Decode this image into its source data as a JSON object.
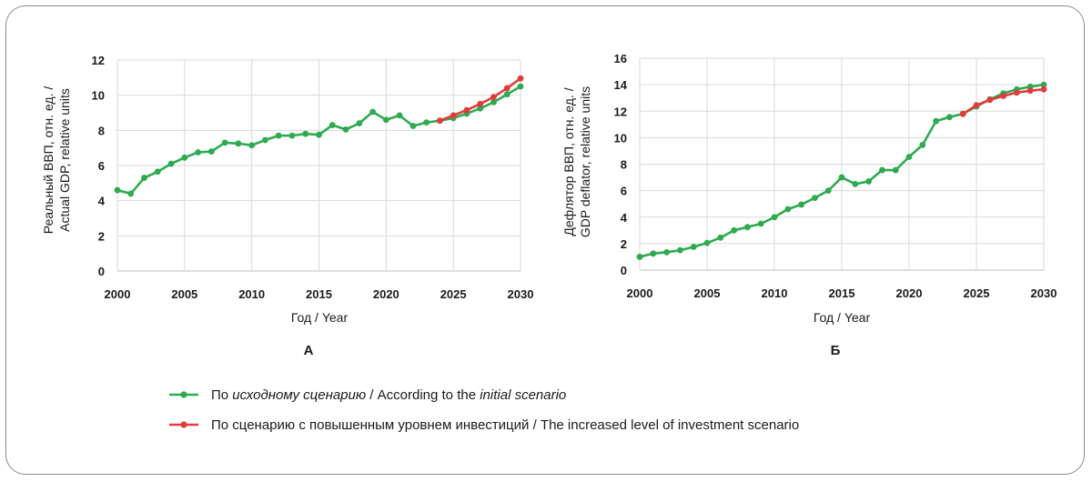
{
  "colors": {
    "initial": "#2eaa4f",
    "invest": "#e03c3c",
    "grid": "#d9d9d9",
    "axis": "#bfbfbf"
  },
  "legend": {
    "initial": {
      "prefix": "По ",
      "italic1": "исходному сценарию",
      "middle": " / According to the ",
      "italic2": "initial scenario"
    },
    "invest": "По сценарию с повышенным уровнем инвестиций / The increased level of investment scenario"
  },
  "chart_data": [
    {
      "type": "line",
      "panel_label": "А",
      "xlabel": "Год / Year",
      "ylabel_line1": "Реальный ВВП, отн. ед. /",
      "ylabel_line2": "Actual GDP, relative units",
      "xlim": [
        2000,
        2030
      ],
      "ylim": [
        0,
        12
      ],
      "xticks": [
        "2000",
        "2005",
        "2010",
        "2015",
        "2020",
        "2025",
        "2030"
      ],
      "yticks": [
        "0",
        "2",
        "4",
        "6",
        "8",
        "10",
        "12"
      ],
      "series": [
        {
          "key": "initial",
          "x": [
            2000,
            2001,
            2002,
            2003,
            2004,
            2005,
            2006,
            2007,
            2008,
            2009,
            2010,
            2011,
            2012,
            2013,
            2014,
            2015,
            2016,
            2017,
            2018,
            2019,
            2020,
            2021,
            2022,
            2023,
            2024,
            2025,
            2026,
            2027,
            2028,
            2029,
            2030
          ],
          "y": [
            4.6,
            4.4,
            5.3,
            5.65,
            6.1,
            6.45,
            6.75,
            6.8,
            7.3,
            7.25,
            7.15,
            7.45,
            7.7,
            7.7,
            7.8,
            7.75,
            8.3,
            8.05,
            8.4,
            9.05,
            8.6,
            8.85,
            8.25,
            8.45,
            8.55,
            8.7,
            8.95,
            9.25,
            9.6,
            10.05,
            10.5
          ]
        },
        {
          "key": "invest",
          "x": [
            2024,
            2025,
            2026,
            2027,
            2028,
            2029,
            2030
          ],
          "y": [
            8.55,
            8.85,
            9.15,
            9.5,
            9.9,
            10.4,
            10.95
          ]
        }
      ]
    },
    {
      "type": "line",
      "panel_label": "Б",
      "xlabel": "Год / Year",
      "ylabel_line1": "Дефлятор ВВП, отн. ед. /",
      "ylabel_line2": "GDP deflator, relative units",
      "xlim": [
        2000,
        2030
      ],
      "ylim": [
        0,
        16
      ],
      "xticks": [
        "2000",
        "2005",
        "2010",
        "2015",
        "2020",
        "2025",
        "2030"
      ],
      "yticks": [
        "0",
        "2",
        "4",
        "6",
        "8",
        "10",
        "12",
        "14",
        "16"
      ],
      "series": [
        {
          "key": "initial",
          "x": [
            2000,
            2001,
            2002,
            2003,
            2004,
            2005,
            2006,
            2007,
            2008,
            2009,
            2010,
            2011,
            2012,
            2013,
            2014,
            2015,
            2016,
            2017,
            2018,
            2019,
            2020,
            2021,
            2022,
            2023,
            2024,
            2025,
            2026,
            2027,
            2028,
            2029,
            2030
          ],
          "y": [
            1.0,
            1.25,
            1.35,
            1.5,
            1.75,
            2.05,
            2.45,
            3.0,
            3.25,
            3.5,
            4.0,
            4.6,
            4.95,
            5.45,
            6.0,
            7.0,
            6.5,
            6.7,
            7.55,
            7.55,
            8.55,
            9.45,
            11.25,
            11.55,
            11.8,
            12.35,
            12.9,
            13.35,
            13.65,
            13.85,
            14.0
          ]
        },
        {
          "key": "invest",
          "x": [
            2024,
            2025,
            2026,
            2027,
            2028,
            2029,
            2030
          ],
          "y": [
            11.8,
            12.45,
            12.85,
            13.15,
            13.4,
            13.55,
            13.65
          ]
        }
      ]
    }
  ]
}
